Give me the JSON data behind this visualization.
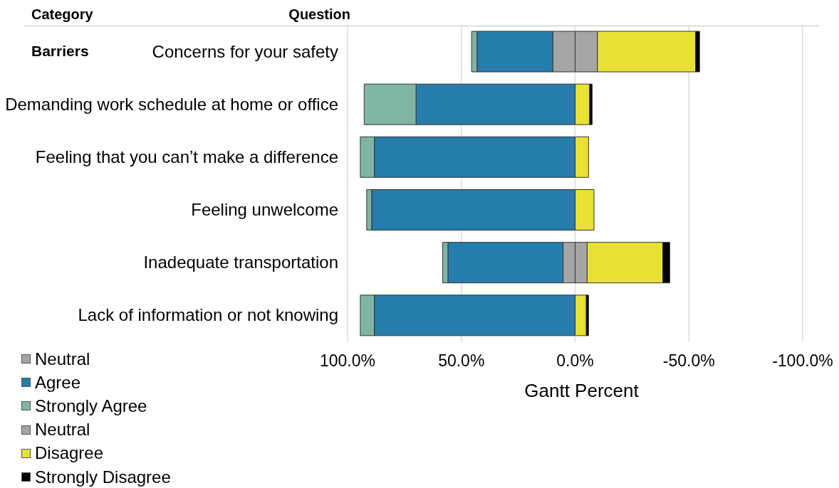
{
  "chart_data": {
    "type": "bar",
    "orientation": "horizontal",
    "stacked": true,
    "ylabel": "Question",
    "xlabel": "Gantt Percent",
    "annotations": [
      "Category",
      "Barriers"
    ],
    "categories": [
      "Concerns for your safety",
      "Demanding work schedule at home or office",
      "Feeling that you can’t make a difference",
      "Feeling unwelcome",
      "Inadequate transportation",
      "Lack of information or not knowing"
    ],
    "series": [
      {
        "name": "Neutral",
        "color": "#a5a5a5",
        "values": [
          9.8,
          0,
          0,
          0,
          5.3,
          0
        ]
      },
      {
        "name": "Agree",
        "color": "#267cab",
        "values": [
          33.3,
          69.9,
          88.2,
          89.4,
          50.6,
          88.2
        ]
      },
      {
        "name": "Strongly Agree",
        "color": "#80b5a3",
        "values": [
          2.4,
          22.8,
          6.2,
          2.2,
          2.3,
          6.2
        ]
      },
      {
        "name": "Neutral",
        "color": "#a5a5a5",
        "values": [
          -9.8,
          0,
          0,
          0,
          -5.3,
          0
        ]
      },
      {
        "name": "Disagree",
        "color": "#e8e034",
        "values": [
          -43.1,
          -6.4,
          -5.9,
          -8.3,
          -33.2,
          -4.9
        ]
      },
      {
        "name": "Strongly Disagree",
        "color": "#000000",
        "values": [
          -1.8,
          -1.1,
          0,
          0,
          -3.1,
          -1.0
        ]
      }
    ],
    "xlim": [
      100,
      -100
    ],
    "xticks": [
      {
        "value": 100,
        "label": "100.0%"
      },
      {
        "value": 50,
        "label": "50.0%"
      },
      {
        "value": 0,
        "label": "0.0%"
      },
      {
        "value": -50,
        "label": "-50.0%"
      },
      {
        "value": -100,
        "label": "-100.0%"
      }
    ],
    "grid": "x",
    "legend": "bottom left"
  }
}
